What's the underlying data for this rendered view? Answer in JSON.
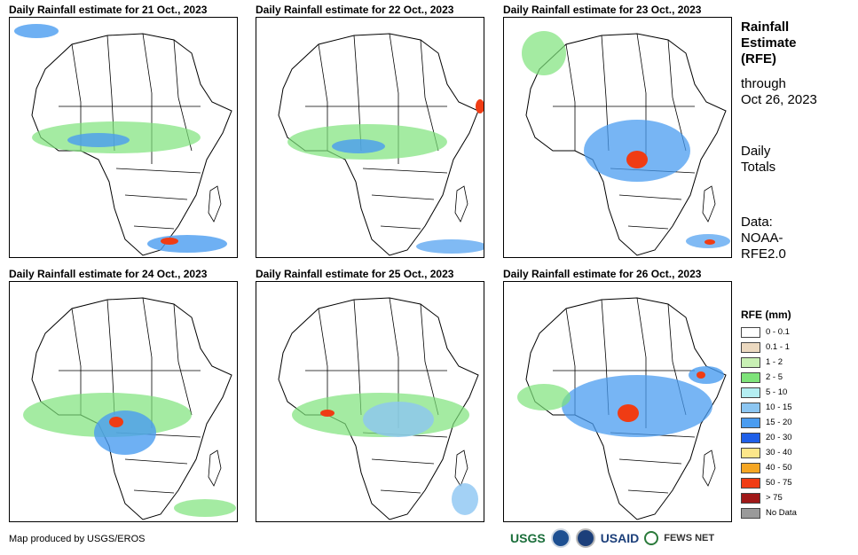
{
  "panels": [
    {
      "title": "Daily Rainfall estimate for 21 Oct., 2023"
    },
    {
      "title": "Daily Rainfall estimate for 22 Oct., 2023"
    },
    {
      "title": "Daily Rainfall estimate for 23 Oct., 2023"
    },
    {
      "title": "Daily Rainfall estimate for 24 Oct., 2023"
    },
    {
      "title": "Daily Rainfall estimate for 25 Oct., 2023"
    },
    {
      "title": "Daily Rainfall estimate for 26 Oct., 2023"
    }
  ],
  "side": {
    "title_line1": "Rainfall",
    "title_line2": "Estimate",
    "title_line3": "(RFE)",
    "through_line1": "through",
    "through_line2": "Oct 26, 2023",
    "totals_line1": "Daily",
    "totals_line2": "Totals",
    "data_line1": "Data:",
    "data_line2": "NOAA-",
    "data_line3": "RFE2.0"
  },
  "legend": {
    "title": "RFE (mm)",
    "items": [
      {
        "label": "0 - 0.1",
        "color": "#ffffff"
      },
      {
        "label": "0.1 - 1",
        "color": "#ecd9c0"
      },
      {
        "label": "1 - 2",
        "color": "#c8f0b4"
      },
      {
        "label": "2 - 5",
        "color": "#7ee37a"
      },
      {
        "label": "5 - 10",
        "color": "#b4eef2"
      },
      {
        "label": "10 - 15",
        "color": "#8cc6f2"
      },
      {
        "label": "15 - 20",
        "color": "#4a9cf0"
      },
      {
        "label": "20 - 30",
        "color": "#1f5fe8"
      },
      {
        "label": "30 - 40",
        "color": "#fde68a"
      },
      {
        "label": "40 - 50",
        "color": "#f5a623"
      },
      {
        "label": "50 - 75",
        "color": "#f03c14"
      },
      {
        "label": "> 75",
        "color": "#a01818"
      },
      {
        "label": "No Data",
        "color": "#9a9a9a"
      }
    ]
  },
  "footer": {
    "text": "Map produced by USGS/EROS"
  },
  "logos": {
    "usgs": "USGS",
    "usaid": "USAID",
    "fews": "FEWS NET"
  }
}
